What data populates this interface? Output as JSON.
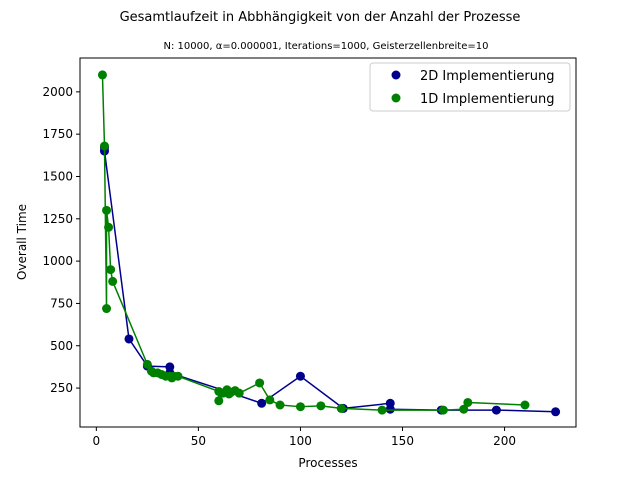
{
  "chart_data": {
    "type": "line",
    "title": "Gesamtlaufzeit in Abbhängigkeit von der Anzahl der Prozesse",
    "subtitle": "N: 10000, α=0.000001, Iterations=1000, Geisterzellenbreite=10",
    "xlabel": "Processes",
    "ylabel": "Overall Time",
    "xlim": [
      -8,
      235
    ],
    "ylim": [
      20,
      2200
    ],
    "xticks": [
      0,
      50,
      100,
      150,
      200
    ],
    "yticks": [
      250,
      500,
      750,
      1000,
      1250,
      1500,
      1750,
      2000
    ],
    "grid": false,
    "legend_position": "top-right",
    "series": [
      {
        "name": "2D Implementierung",
        "color": "#00008b",
        "x": [
          4,
          4,
          16,
          25,
          36,
          36,
          64,
          81,
          100,
          121,
          144,
          144,
          169,
          196,
          225
        ],
        "y": [
          1670,
          1650,
          540,
          380,
          375,
          340,
          230,
          160,
          320,
          130,
          160,
          125,
          120,
          120,
          110
        ]
      },
      {
        "name": "1D Implementierung",
        "color": "#008000",
        "x": [
          3,
          4,
          5,
          5,
          6,
          7,
          8,
          25,
          27,
          28,
          30,
          32,
          34,
          36,
          37,
          38,
          40,
          60,
          60,
          62,
          64,
          65,
          66,
          68,
          70,
          80,
          85,
          90,
          100,
          110,
          120,
          140,
          170,
          180,
          182,
          210
        ],
        "y": [
          2100,
          1680,
          720,
          1300,
          1200,
          950,
          880,
          390,
          350,
          340,
          340,
          330,
          320,
          320,
          310,
          320,
          320,
          230,
          175,
          220,
          240,
          215,
          225,
          235,
          220,
          280,
          180,
          150,
          140,
          145,
          130,
          120,
          120,
          125,
          165,
          150
        ]
      }
    ]
  }
}
